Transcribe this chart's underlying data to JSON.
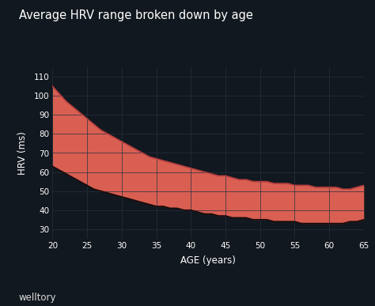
{
  "title": "Average HRV range broken down by age",
  "xlabel": "AGE (years)",
  "ylabel": "HRV (ms)",
  "watermark": "welltory",
  "bg_color": "#12181f",
  "grid_color": "#253040",
  "text_color": "#ffffff",
  "fill_color": "#d95f52",
  "fill_alpha": 1.0,
  "upper_line_color": "#b84040",
  "lower_line_color": "#7a2020",
  "ylim": [
    25,
    115
  ],
  "xlim": [
    20,
    65
  ],
  "yticks": [
    30,
    40,
    50,
    60,
    70,
    80,
    90,
    100,
    110
  ],
  "xticks": [
    20,
    25,
    30,
    35,
    40,
    45,
    50,
    55,
    60,
    65
  ],
  "age": [
    20,
    21,
    22,
    23,
    24,
    25,
    26,
    27,
    28,
    29,
    30,
    31,
    32,
    33,
    34,
    35,
    36,
    37,
    38,
    39,
    40,
    41,
    42,
    43,
    44,
    45,
    46,
    47,
    48,
    49,
    50,
    51,
    52,
    53,
    54,
    55,
    56,
    57,
    58,
    59,
    60,
    61,
    62,
    63,
    64,
    65
  ],
  "hrv_upper": [
    105,
    101,
    97,
    94,
    91,
    88,
    85,
    82,
    80,
    78,
    76,
    74,
    72,
    70,
    68,
    67,
    66,
    65,
    64,
    63,
    62,
    61,
    60,
    59,
    58,
    58,
    57,
    56,
    56,
    55,
    55,
    55,
    54,
    54,
    54,
    53,
    53,
    53,
    52,
    52,
    52,
    52,
    51,
    51,
    52,
    53
  ],
  "hrv_lower": [
    63,
    61,
    59,
    57,
    55,
    53,
    51,
    50,
    49,
    48,
    47,
    46,
    45,
    44,
    43,
    42,
    42,
    41,
    41,
    40,
    40,
    39,
    38,
    38,
    37,
    37,
    36,
    36,
    36,
    35,
    35,
    35,
    34,
    34,
    34,
    34,
    33,
    33,
    33,
    33,
    33,
    33,
    33,
    34,
    34,
    35
  ]
}
